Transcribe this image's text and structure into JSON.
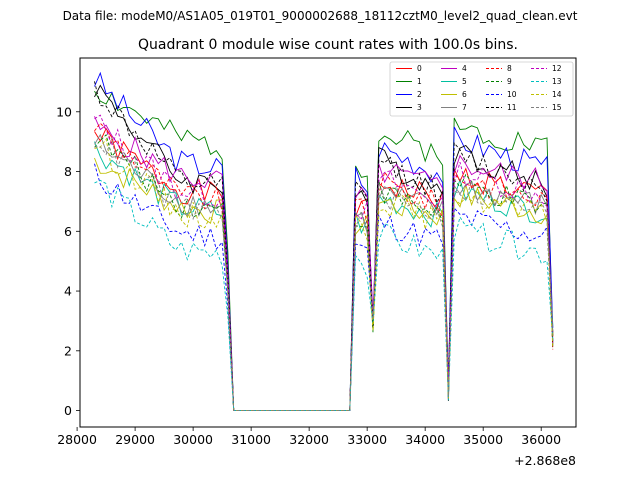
{
  "figure": {
    "suptitle": "Data file: modeM0/AS1A05_019T01_9000002688_18112cztM0_level2_quad_clean.evt"
  },
  "chart_data": {
    "type": "line",
    "title": "Quadrant 0 module wise count rates with 100.0s bins.",
    "xlabel": "",
    "ylabel": "",
    "x_offset_label": "+2.868e8",
    "xlim": [
      28050,
      36600
    ],
    "ylim": [
      -0.55,
      11.8
    ],
    "x_ticks": [
      28000,
      29000,
      30000,
      31000,
      32000,
      33000,
      34000,
      35000,
      36000
    ],
    "y_ticks": [
      0,
      2,
      4,
      6,
      8,
      10
    ],
    "grid": false,
    "legend_position": "top-right",
    "legend_ncols": 4,
    "x": [
      28300,
      28400,
      28500,
      28600,
      28700,
      28800,
      28900,
      29000,
      29100,
      29200,
      29300,
      29400,
      29500,
      29600,
      29700,
      29800,
      29900,
      30000,
      30100,
      30200,
      30300,
      30400,
      30500,
      30600,
      30700,
      30800,
      30900,
      31000,
      31100,
      31200,
      31300,
      31400,
      31500,
      31600,
      31700,
      31800,
      31900,
      32000,
      32100,
      32200,
      32300,
      32400,
      32500,
      32600,
      32700,
      32800,
      32900,
      33000,
      33100,
      33200,
      33300,
      33400,
      33500,
      33600,
      33700,
      33800,
      33900,
      34000,
      34100,
      34200,
      34300,
      34400,
      34500,
      34600,
      34700,
      34800,
      34900,
      35000,
      35100,
      35200,
      35300,
      35400,
      35500,
      35600,
      35700,
      35800,
      35900,
      36000,
      36100,
      36200
    ],
    "segments": [
      {
        "from": 28300,
        "to": 30500,
        "start": 1.0,
        "end": 0.92
      },
      {
        "from": 32800,
        "to": 33000,
        "start": 0.82,
        "end": 0.85
      },
      {
        "from": 33200,
        "to": 34300,
        "start": 0.92,
        "end": 0.9
      },
      {
        "from": 34500,
        "to": 36100,
        "start": 0.95,
        "end": 0.92
      }
    ],
    "series": [
      {
        "name": "0",
        "color": "#ff0000",
        "style": "solid",
        "level": 9.3,
        "late": 7.8,
        "seed": 1
      },
      {
        "name": "1",
        "color": "#008000",
        "style": "solid",
        "level": 10.8,
        "late": 9.6,
        "seed": 2
      },
      {
        "name": "2",
        "color": "#0000ff",
        "style": "solid",
        "level": 11.1,
        "late": 8.8,
        "seed": 3
      },
      {
        "name": "3",
        "color": "#000000",
        "style": "solid",
        "level": 10.9,
        "late": 8.2,
        "seed": 4
      },
      {
        "name": "4",
        "color": "#bf00bf",
        "style": "solid",
        "level": 9.5,
        "late": 8.3,
        "seed": 5
      },
      {
        "name": "5",
        "color": "#00bf9f",
        "style": "solid",
        "level": 8.8,
        "late": 7.2,
        "seed": 6
      },
      {
        "name": "6",
        "color": "#bfbf00",
        "style": "solid",
        "level": 8.4,
        "late": 7.2,
        "seed": 7
      },
      {
        "name": "7",
        "color": "#808080",
        "style": "solid",
        "level": 9.0,
        "late": 7.4,
        "seed": 8
      },
      {
        "name": "8",
        "color": "#ff0000",
        "style": "dashed",
        "level": 9.6,
        "late": 7.6,
        "seed": 9
      },
      {
        "name": "9",
        "color": "#008000",
        "style": "dashed",
        "level": 9.2,
        "late": 7.3,
        "seed": 10
      },
      {
        "name": "10",
        "color": "#0000ff",
        "style": "dashed",
        "level": 7.9,
        "late": 6.3,
        "seed": 11
      },
      {
        "name": "11",
        "color": "#000000",
        "style": "dashed",
        "level": 10.8,
        "late": 8.1,
        "seed": 12
      },
      {
        "name": "12",
        "color": "#bf00bf",
        "style": "dashed",
        "level": 9.7,
        "late": 7.8,
        "seed": 13
      },
      {
        "name": "13",
        "color": "#00bfbf",
        "style": "dashed",
        "level": 7.7,
        "late": 5.7,
        "seed": 14
      },
      {
        "name": "14",
        "color": "#bfbf00",
        "style": "dashed",
        "level": 9.0,
        "late": 7.0,
        "seed": 15
      },
      {
        "name": "15",
        "color": "#808080",
        "style": "dashed",
        "level": 9.2,
        "late": 7.2,
        "seed": 16
      }
    ]
  }
}
